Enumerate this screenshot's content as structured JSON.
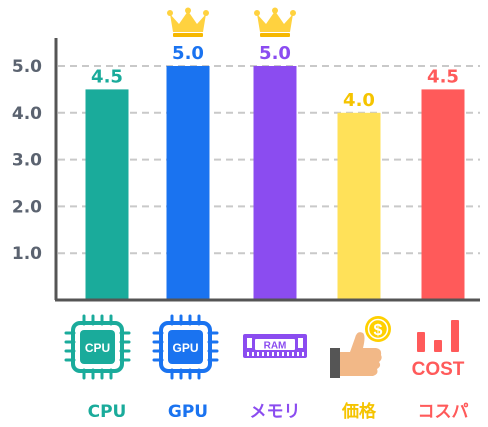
{
  "chart_data": {
    "type": "bar",
    "categories": [
      "CPU",
      "GPU",
      "メモリ",
      "価格",
      "コスパ"
    ],
    "values": [
      4.5,
      5.0,
      5.0,
      4.0,
      4.5
    ],
    "value_labels": [
      "4.5",
      "5.0",
      "5.0",
      "4.0",
      "4.5"
    ],
    "yticks": [
      "1.0",
      "2.0",
      "3.0",
      "4.0",
      "5.0"
    ],
    "ylim": [
      0,
      5.5
    ],
    "grid": true,
    "colors": [
      "#1aab9b",
      "#1a73f0",
      "#8b4cf0",
      "#ffe159",
      "#ff5a5a"
    ],
    "label_colors": [
      "#1aab9b",
      "#1a73f0",
      "#8b4cf0",
      "#f5c400",
      "#ff5a5a"
    ],
    "crowned": [
      false,
      true,
      true,
      false,
      false
    ]
  },
  "icons": {
    "cpu_text": "CPU",
    "gpu_text": "GPU",
    "ram_text": "RAM",
    "coin_symbol": "$",
    "cost_text": "COST"
  },
  "icon_names": [
    "cpu-chip-icon",
    "gpu-chip-icon",
    "ram-stick-icon",
    "thumbs-up-coin-icon",
    "cost-bars-icon"
  ]
}
